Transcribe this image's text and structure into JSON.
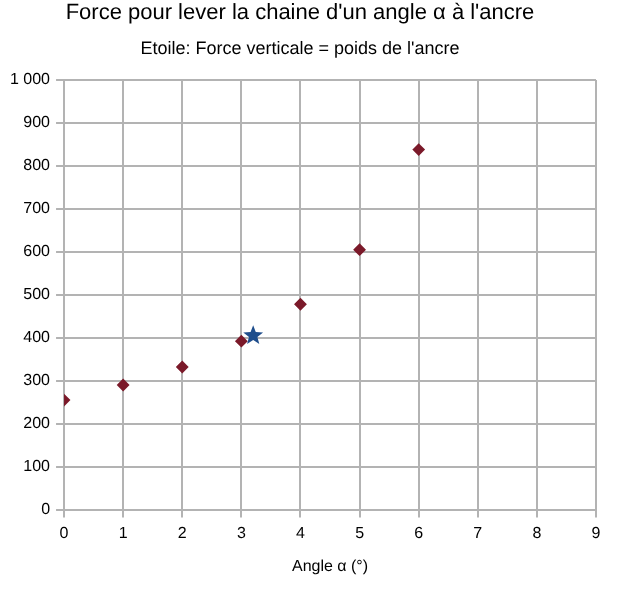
{
  "chart_data": {
    "type": "scatter",
    "title": "Force pour lever la chaine d'un angle α à l'ancre",
    "subtitle": "Etoile: Force verticale = poids de l'ancre",
    "xlabel": "Angle α (°)",
    "series": [
      {
        "x": [
          0,
          1,
          2,
          3,
          4,
          5,
          6
        ],
        "values": [
          255,
          290,
          332,
          392,
          478,
          605,
          838
        ],
        "color": "#7b1a2a",
        "marker": "diamond"
      },
      {
        "x": [
          3.2
        ],
        "values": [
          405
        ],
        "color": "#1f4e8c",
        "marker": "star"
      }
    ],
    "xlim": [
      0,
      9
    ],
    "xticks": [
      0,
      1,
      2,
      3,
      4,
      5,
      6,
      7,
      8,
      9
    ],
    "ylim": [
      0,
      1000
    ],
    "yticks": [
      0,
      100,
      200,
      300,
      400,
      500,
      600,
      700,
      800,
      900,
      {
        "value": 1000,
        "label": "1 000"
      }
    ],
    "grid": true,
    "legend": false
  }
}
